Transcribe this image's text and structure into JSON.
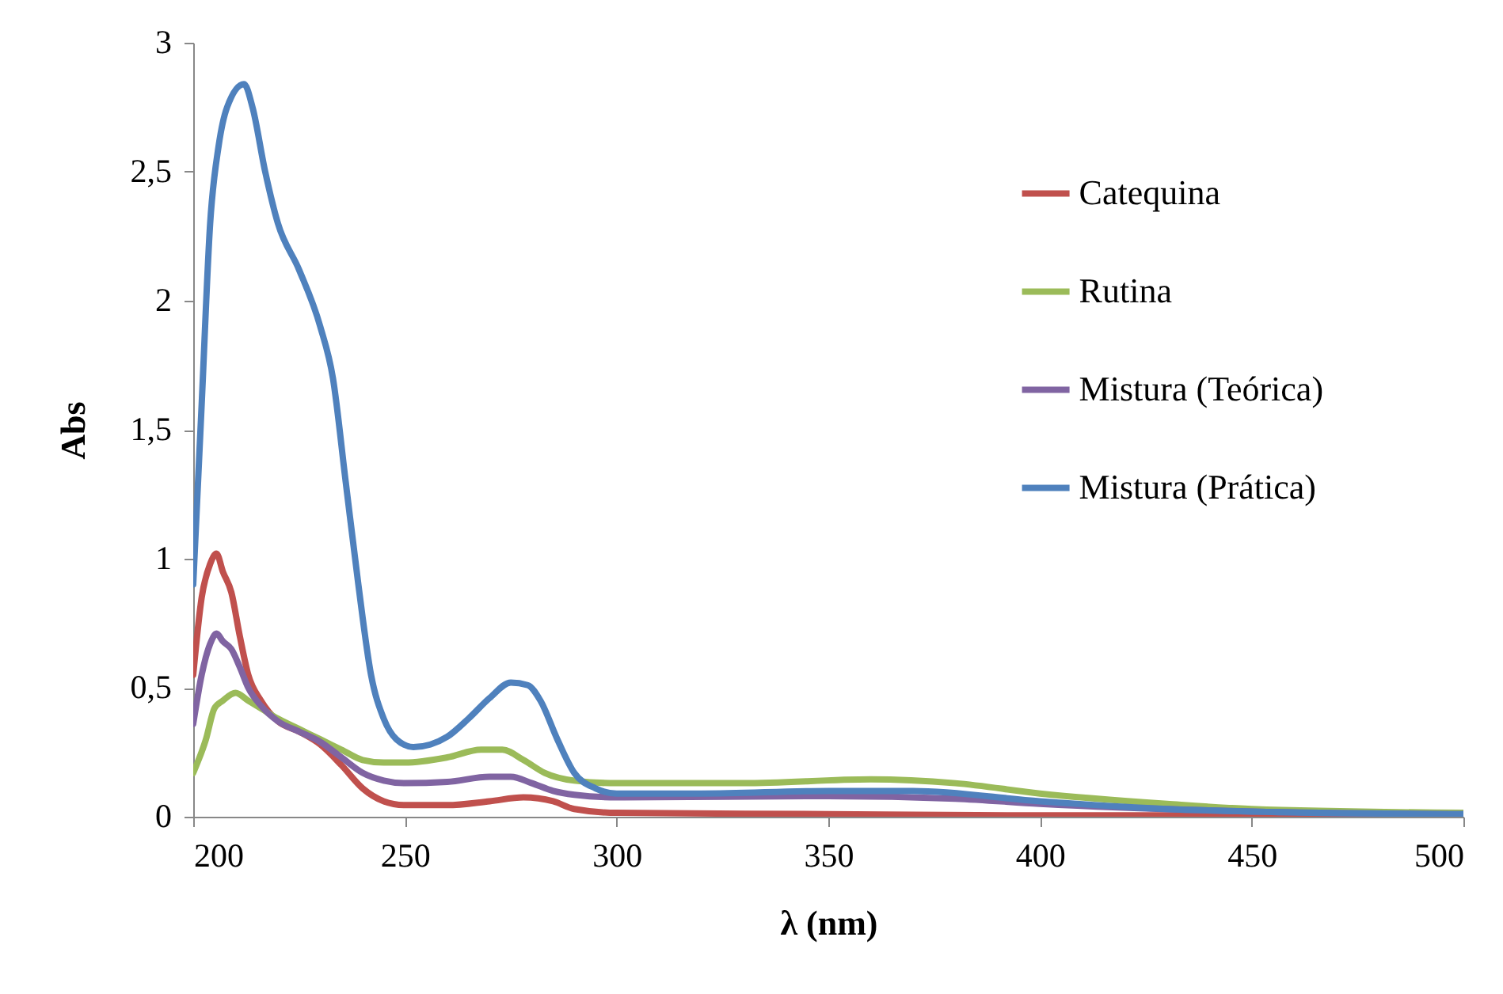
{
  "chart_data": {
    "type": "line",
    "xlabel": "λ (nm)",
    "ylabel": "Abs",
    "xlim": [
      200,
      500
    ],
    "xticks": [
      200,
      250,
      300,
      350,
      400,
      450,
      500
    ],
    "ylim": [
      0,
      3
    ],
    "yticks": [
      0,
      {
        "value": 0.5,
        "label": "0,5"
      },
      1,
      {
        "value": 1.5,
        "label": "1,5"
      },
      2,
      {
        "value": 2.5,
        "label": "2,5"
      },
      3
    ],
    "grid": false,
    "legend": "right",
    "marker": "none",
    "line_style": "solid",
    "series": [
      {
        "name": "Catequina",
        "color": "#c0504d",
        "x": [
          200,
          202,
          204,
          205.5,
          207,
          209,
          211,
          213,
          216,
          220,
          225,
          230,
          235,
          240,
          245,
          250,
          260,
          270,
          278,
          285,
          290,
          300,
          350,
          400,
          500
        ],
        "values": [
          0.55,
          0.85,
          0.98,
          1.02,
          0.95,
          0.87,
          0.7,
          0.55,
          0.45,
          0.37,
          0.33,
          0.28,
          0.2,
          0.11,
          0.06,
          0.045,
          0.045,
          0.06,
          0.075,
          0.06,
          0.03,
          0.015,
          0.01,
          0.005,
          0.005
        ]
      },
      {
        "name": "Rutina",
        "color": "#9bbb59",
        "x": [
          200,
          203,
          205,
          207,
          210,
          213,
          216,
          220,
          225,
          230,
          235,
          240,
          245,
          250,
          260,
          268,
          273,
          278,
          283,
          290,
          300,
          330,
          360,
          380,
          400,
          430,
          450,
          500
        ],
        "values": [
          0.17,
          0.3,
          0.42,
          0.45,
          0.48,
          0.45,
          0.42,
          0.38,
          0.34,
          0.3,
          0.26,
          0.22,
          0.21,
          0.21,
          0.23,
          0.26,
          0.26,
          0.22,
          0.17,
          0.14,
          0.13,
          0.13,
          0.145,
          0.13,
          0.09,
          0.05,
          0.03,
          0.015
        ]
      },
      {
        "name": "Mistura (Teórica)",
        "color": "#8064a2",
        "x": [
          200,
          202,
          204,
          205.5,
          207,
          209,
          211,
          213,
          216,
          220,
          225,
          230,
          235,
          240,
          245,
          250,
          260,
          270,
          275,
          280,
          285,
          290,
          300,
          350,
          380,
          400,
          450,
          500
        ],
        "values": [
          0.36,
          0.55,
          0.67,
          0.71,
          0.68,
          0.65,
          0.58,
          0.5,
          0.43,
          0.37,
          0.33,
          0.29,
          0.23,
          0.17,
          0.14,
          0.13,
          0.135,
          0.155,
          0.155,
          0.13,
          0.1,
          0.085,
          0.075,
          0.08,
          0.07,
          0.05,
          0.02,
          0.01
        ]
      },
      {
        "name": "Mistura (Prática)",
        "color": "#4f81bd",
        "x": [
          200,
          202,
          204,
          206,
          208,
          212,
          214,
          217,
          220,
          225,
          230,
          233,
          236,
          239,
          242,
          245,
          248,
          252,
          256,
          260,
          265,
          270,
          275,
          279,
          282,
          286,
          290,
          295,
          300,
          320,
          350,
          370,
          400,
          430,
          450,
          500
        ],
        "values": [
          0.9,
          1.6,
          2.3,
          2.6,
          2.75,
          2.84,
          2.75,
          2.5,
          2.3,
          2.12,
          1.9,
          1.7,
          1.3,
          0.9,
          0.55,
          0.38,
          0.3,
          0.27,
          0.28,
          0.31,
          0.38,
          0.46,
          0.52,
          0.51,
          0.45,
          0.3,
          0.17,
          0.11,
          0.09,
          0.09,
          0.1,
          0.1,
          0.06,
          0.03,
          0.02,
          0.01
        ]
      }
    ]
  }
}
